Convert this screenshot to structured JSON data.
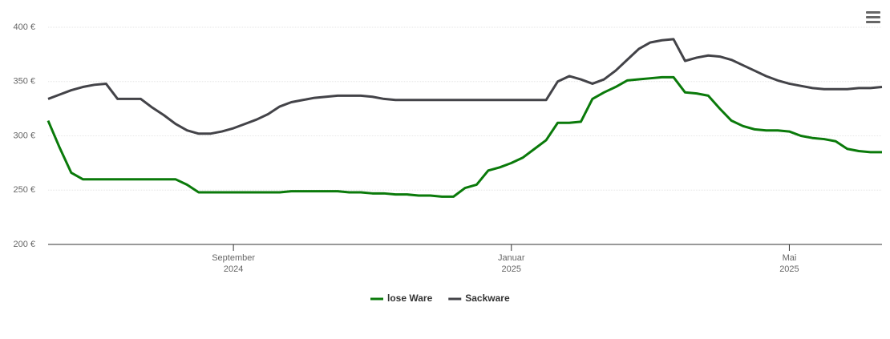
{
  "chart_data": {
    "type": "line",
    "categories": [
      null,
      null,
      null,
      null,
      null,
      null,
      null,
      null,
      null,
      null,
      null,
      null,
      null,
      null,
      null,
      null,
      "September\n2024",
      null,
      null,
      null,
      null,
      null,
      null,
      null,
      null,
      null,
      null,
      null,
      null,
      null,
      null,
      null,
      null,
      null,
      null,
      null,
      null,
      null,
      null,
      null,
      "Januar\n2025",
      null,
      null,
      null,
      null,
      null,
      null,
      null,
      null,
      null,
      null,
      null,
      null,
      null,
      null,
      null,
      null,
      null,
      null,
      null,
      null,
      null,
      null,
      null,
      "Mai\n2025",
      null,
      null,
      null,
      null,
      null,
      null,
      null,
      null
    ],
    "series": [
      {
        "name": "lose Ware",
        "color": "#0a7a0a",
        "values": [
          314,
          289,
          266,
          260,
          260,
          260,
          260,
          260,
          260,
          260,
          260,
          260,
          255,
          248,
          248,
          248,
          248,
          248,
          248,
          248,
          248,
          249,
          249,
          249,
          249,
          249,
          248,
          248,
          247,
          247,
          246,
          246,
          245,
          245,
          244,
          244,
          252,
          255,
          268,
          271,
          275,
          280,
          288,
          296,
          312,
          312,
          313,
          334,
          340,
          345,
          351,
          352,
          353,
          354,
          354,
          340,
          339,
          337,
          325,
          314,
          309,
          306,
          305,
          305,
          304,
          300,
          298,
          297,
          295,
          288,
          286,
          285,
          285
        ]
      },
      {
        "name": "Sackware",
        "color": "#434348",
        "values": [
          334,
          338,
          342,
          345,
          347,
          348,
          334,
          334,
          334,
          326,
          319,
          311,
          305,
          302,
          302,
          304,
          307,
          311,
          315,
          320,
          327,
          331,
          333,
          335,
          336,
          337,
          337,
          337,
          336,
          334,
          333,
          333,
          333,
          333,
          333,
          333,
          333,
          333,
          333,
          333,
          333,
          333,
          333,
          333,
          350,
          355,
          352,
          348,
          352,
          360,
          370,
          380,
          386,
          388,
          389,
          369,
          372,
          374,
          373,
          370,
          365,
          360,
          355,
          351,
          348,
          346,
          344,
          343,
          343,
          343,
          344,
          344,
          345
        ]
      }
    ],
    "ylim": [
      200,
      400
    ],
    "yticks": [
      {
        "value": 200,
        "label": "200 €"
      },
      {
        "value": 250,
        "label": "250 €"
      },
      {
        "value": 300,
        "label": "300 €"
      },
      {
        "value": 350,
        "label": "350 €"
      },
      {
        "value": 400,
        "label": "400 €"
      }
    ],
    "grid": true,
    "legend": "bottom"
  }
}
